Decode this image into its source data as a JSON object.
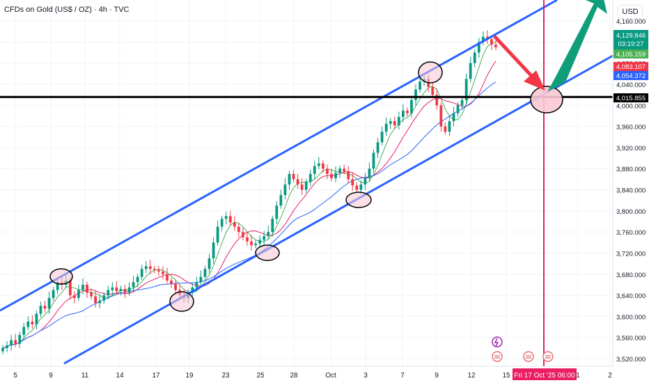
{
  "header": {
    "title": "CFDs on Gold (US$ / OZ) · 4h · TVC",
    "currency": "USD"
  },
  "colors": {
    "up": "#089981",
    "down": "#f23645",
    "channel": "#2962ff",
    "fast_ma": "#4caf50",
    "mid_ma": "#e91e63",
    "slow_ma": "#2962ff",
    "level": "#000000",
    "target_arrow": "#0f9d7a",
    "down_arrow": "#f23645",
    "vertical_marker": "#e91e63"
  },
  "chart_data": {
    "type": "candlestick",
    "symbol": "CFDs on Gold (US$ / OZ)",
    "timeframe": "4h",
    "ylim": [
      3500,
      4200
    ],
    "y_ticks": [
      "4,160.000",
      "4,120.000",
      "4,080.000",
      "4,040.000",
      "4,000.000",
      "3,960.000",
      "3,920.000",
      "3,880.000",
      "3,840.000",
      "3,800.000",
      "3,760.000",
      "3,720.000",
      "3,680.000",
      "3,640.000",
      "3,600.000",
      "3,560.000",
      "3,520.000"
    ],
    "x_ticks": [
      "5",
      "9",
      "11",
      "14",
      "17",
      "19",
      "23",
      "25",
      "28",
      "Oct",
      "3",
      "7",
      "9",
      "12",
      "15",
      "1",
      "2"
    ],
    "price_labels": [
      {
        "text": "4,129.846",
        "sub": "03:19:27",
        "color": "#089981"
      },
      {
        "text": "4,105.159",
        "color": "#4caf50"
      },
      {
        "text": "4,083.107",
        "color": "#f23645"
      },
      {
        "text": "4,054.372",
        "color": "#2962ff"
      },
      {
        "text": "4,015.855",
        "color": "#000000"
      }
    ],
    "horizontal_level": 4015.855,
    "date_marker": "Fri 17 Oct '25   06:00",
    "closes": [
      3540,
      3545,
      3555,
      3548,
      3565,
      3580,
      3590,
      3585,
      3605,
      3620,
      3615,
      3635,
      3650,
      3665,
      3660,
      3668,
      3640,
      3635,
      3650,
      3660,
      3645,
      3638,
      3625,
      3630,
      3640,
      3650,
      3655,
      3648,
      3652,
      3645,
      3655,
      3665,
      3675,
      3690,
      3695,
      3690,
      3688,
      3685,
      3680,
      3668,
      3662,
      3650,
      3640,
      3635,
      3645,
      3655,
      3665,
      3675,
      3690,
      3710,
      3740,
      3770,
      3785,
      3790,
      3778,
      3770,
      3760,
      3750,
      3742,
      3735,
      3738,
      3745,
      3752,
      3760,
      3785,
      3810,
      3830,
      3850,
      3870,
      3860,
      3850,
      3840,
      3855,
      3870,
      3885,
      3890,
      3880,
      3870,
      3862,
      3872,
      3880,
      3875,
      3860,
      3848,
      3840,
      3850,
      3862,
      3880,
      3910,
      3930,
      3950,
      3965,
      3970,
      3962,
      3978,
      3990,
      3985,
      4010,
      4030,
      4045,
      4050,
      4035,
      4020,
      4000,
      3960,
      3950,
      3970,
      3985,
      4000,
      4010,
      4050,
      4080,
      4100,
      4120,
      4130,
      4125,
      4115,
      4110
    ],
    "annotations": {
      "circles": 7,
      "channel_lines": 2,
      "arrows": [
        "down",
        "up"
      ]
    }
  }
}
